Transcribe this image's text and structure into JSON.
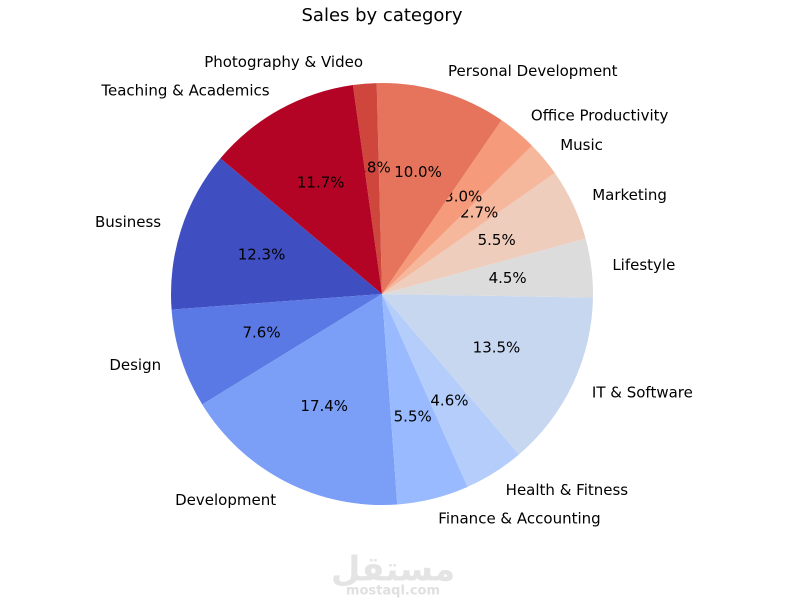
{
  "chart_data": {
    "type": "pie",
    "title": "Sales by category",
    "categories": [
      "Business",
      "Design",
      "Development",
      "Finance & Accounting",
      "Health & Fitness",
      "IT & Software",
      "Lifestyle",
      "Marketing",
      "Music",
      "Office Productivity",
      "Personal Development",
      "Photography & Video",
      "Teaching & Academics"
    ],
    "values": [
      12.3,
      7.6,
      17.4,
      5.5,
      4.6,
      13.5,
      4.5,
      5.5,
      2.7,
      3.0,
      10.0,
      1.8,
      11.7
    ],
    "value_labels": [
      "12.3%",
      "7.6%",
      "17.4%",
      "5.5%",
      "4.6%",
      "13.5%",
      "4.5%",
      "5.5%",
      "2.7%",
      "3.0%",
      "10.0%",
      "1.8%",
      "11.7%"
    ],
    "colors": [
      "#3f4fc2",
      "#5b79e4",
      "#7b9ff6",
      "#99baff",
      "#b4cdfa",
      "#c8d7f0",
      "#dcdcdc",
      "#efcdbd",
      "#f5b89d",
      "#f59b7c",
      "#e6745c",
      "#cf463d",
      "#b40426"
    ],
    "startangle": 140
  },
  "watermark": {
    "arabic": "مستقل",
    "latin": "mostaql.com"
  }
}
